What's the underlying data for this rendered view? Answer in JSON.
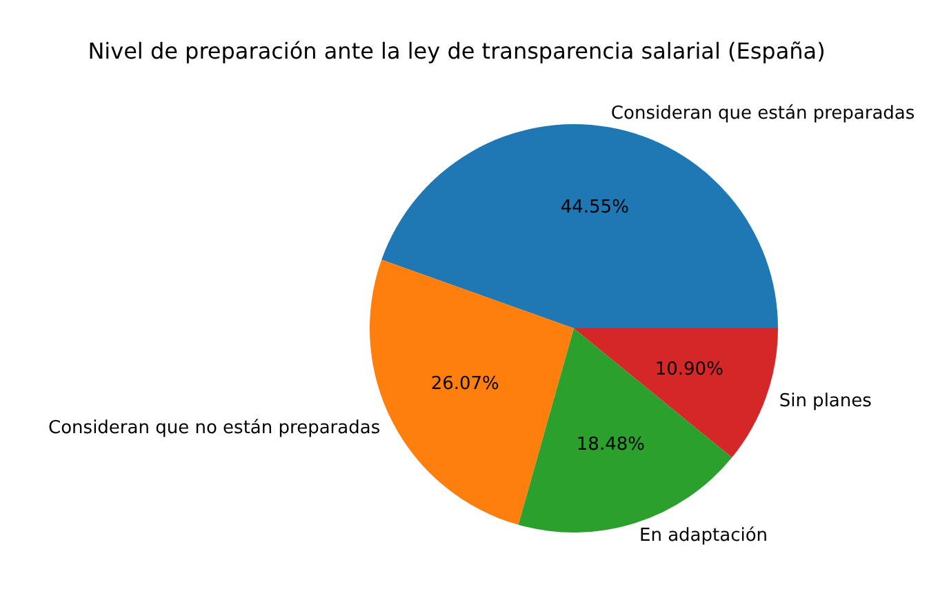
{
  "chart_data": {
    "type": "pie",
    "title": "Nivel de preparación ante la ley de transparencia salarial (España)",
    "categories": [
      "Consideran que están preparadas",
      "Consideran que no están preparadas",
      "En adaptación",
      "Sin planes"
    ],
    "values": [
      44.55,
      26.07,
      18.48,
      10.9
    ],
    "value_labels": [
      "44.55%",
      "26.07%",
      "18.48%",
      "10.90%"
    ],
    "colors": [
      "#1f77b4",
      "#ff7f0e",
      "#2ca02c",
      "#d62728"
    ],
    "legend": false
  }
}
